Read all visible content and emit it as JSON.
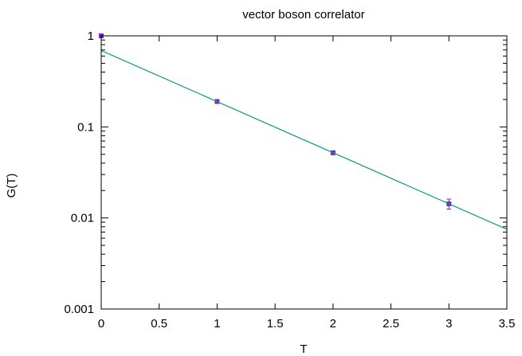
{
  "chart_data": {
    "type": "scatter",
    "title": "vector boson correlator",
    "xlabel": "T",
    "ylabel": "G(T)",
    "xlim": [
      0,
      3.5
    ],
    "ylim": [
      0.001,
      1
    ],
    "yscale": "log",
    "grid": false,
    "legend": "none",
    "x_ticks": [
      "0",
      "0.5",
      "1",
      "1.5",
      "2",
      "2.5",
      "3",
      "3.5"
    ],
    "y_ticks": [
      "1",
      "0.1",
      "0.01",
      "0.001"
    ],
    "series": [
      {
        "kind": "points",
        "color": "#7b22c9",
        "x": [
          0,
          1,
          2,
          3
        ],
        "y": [
          1.0,
          0.19,
          0.052,
          0.0143
        ],
        "err": [
          0.02,
          0.006,
          0.002,
          0.0018
        ]
      },
      {
        "kind": "fit-line",
        "color": "#0f9d78",
        "x": [
          0,
          3.5
        ],
        "y": [
          0.69,
          0.0075
        ]
      }
    ]
  }
}
